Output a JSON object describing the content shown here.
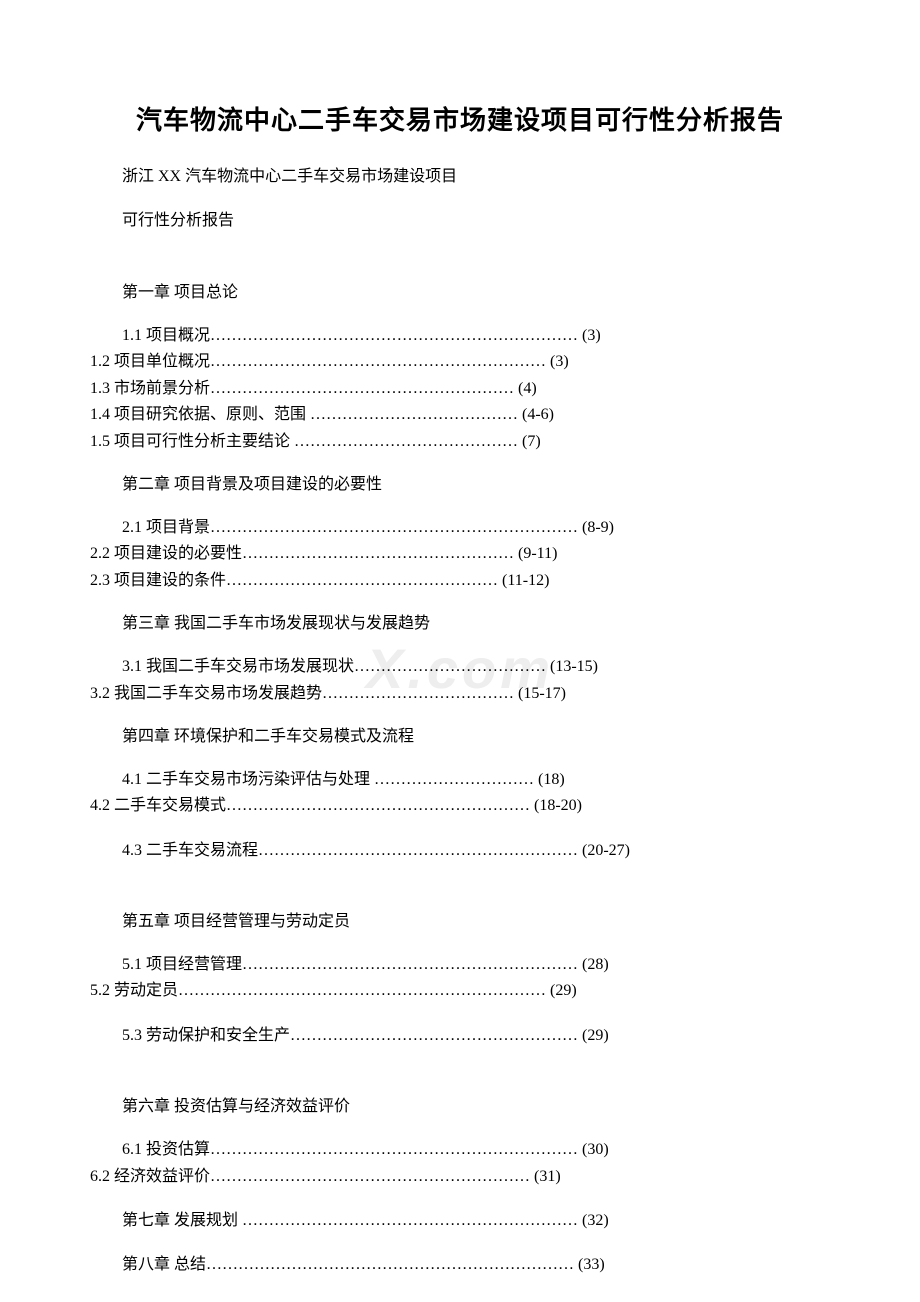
{
  "title": "汽车物流中心二手车交易市场建设项目可行性分析报告",
  "subtitle1": "浙江 XX 汽车物流中心二手车交易市场建设项目",
  "subtitle2": "可行性分析报告",
  "watermark": "X.com",
  "ch1": {
    "heading": "第一章 项目总论",
    "l1": "1.1 项目概况…………………………………………………………… (3)",
    "l2": "1.2 项目单位概况……………………………………………………… (3)",
    "l3": "1.3 市场前景分析………………………………………………… (4)",
    "l4": "1.4 项目研究依据、原则、范围 ………………………………… (4-6)",
    "l5": "1.5 项目可行性分析主要结论 …………………………………… (7)"
  },
  "ch2": {
    "heading": "第二章 项目背景及项目建设的必要性",
    "l1": "2.1 项目背景…………………………………………………………… (8-9)",
    "l2": "2.2 项目建设的必要性…………………………………………… (9-11)",
    "l3": "2.3 项目建设的条件…………………………………………… (11-12)"
  },
  "ch3": {
    "heading": "第三章 我国二手车市场发展现状与发展趋势",
    "l1": "3.1 我国二手车交易市场发展现状……………………………… (13-15)",
    "l2": "3.2 我国二手车交易市场发展趋势……………………………… (15-17)"
  },
  "ch4": {
    "heading": "第四章 环境保护和二手车交易模式及流程",
    "l1": "4.1 二手车交易市场污染评估与处理 ………………………… (18)",
    "l2": "4.2 二手车交易模式………………………………………………… (18-20)",
    "l3": "4.3 二手车交易流程…………………………………………………… (20-27)"
  },
  "ch5": {
    "heading": "第五章 项目经营管理与劳动定员",
    "l1": "5.1 项目经营管理……………………………………………………… (28)",
    "l2": "5.2 劳动定员…………………………………………………………… (29)",
    "l3": "5.3 劳动保护和安全生产……………………………………………… (29)"
  },
  "ch6": {
    "heading": "第六章 投资估算与经济效益评价",
    "l1": "6.1 投资估算…………………………………………………………… (30)",
    "l2": "6.2 经济效益评价…………………………………………………… (31)"
  },
  "ch7": {
    "heading": "第七章 发展规划 ……………………………………………………… (32)"
  },
  "ch8": {
    "heading": "第八章 总结…………………………………………………………… (33)"
  }
}
